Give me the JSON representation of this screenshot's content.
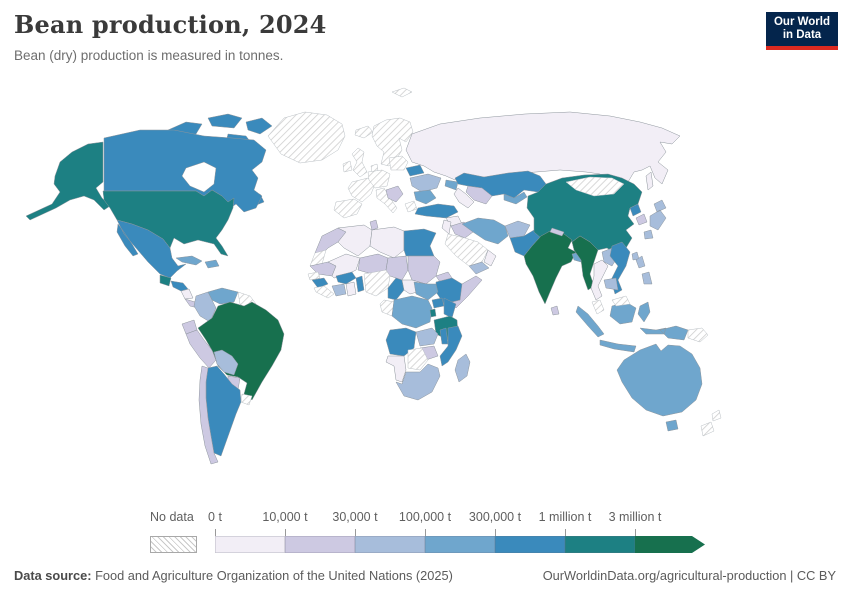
{
  "header": {
    "title": "Bean production, 2024",
    "subtitle": "Bean (dry) production is measured in tonnes.",
    "logo": {
      "line1": "Our World",
      "line2": "in Data",
      "bg": "#04254c",
      "accent": "#dc2a20"
    }
  },
  "legend": {
    "no_data_label": "No data",
    "tick_labels": [
      "0 t",
      "10,000 t",
      "30,000 t",
      "100,000 t",
      "300,000 t",
      "1 million t",
      "3 million t"
    ]
  },
  "footer": {
    "source_label": "Data source:",
    "source_text": " Food and Agriculture Organization of the United Nations (2025)",
    "right_text": "OurWorldinData.org/agricultural-production | CC BY"
  },
  "chart_data": {
    "type": "choropleth",
    "title": "Bean production, 2024",
    "unit": "tonnes",
    "projection": "world",
    "no_data": {
      "label": "No data",
      "pattern": "diagonal-hatch"
    },
    "bin_colors": [
      "#f2eef6",
      "#cdc9e2",
      "#a7bddb",
      "#6fa6cd",
      "#3a8abc",
      "#1d8083",
      "#17704e"
    ],
    "bins": [
      {
        "range": "0 t – 10,000 t",
        "color": "#f2eef6"
      },
      {
        "range": "10,000 t – 30,000 t",
        "color": "#cdc9e2"
      },
      {
        "range": "30,000 t – 100,000 t",
        "color": "#a7bddb"
      },
      {
        "range": "100,000 t – 300,000 t",
        "color": "#6fa6cd"
      },
      {
        "range": "300,000 t – 1 million t",
        "color": "#3a8abc"
      },
      {
        "range": "1 million t – 3 million t",
        "color": "#1d8083"
      },
      {
        "range": "> 3 million t",
        "color": "#17704e"
      }
    ],
    "country_bins": {
      "greenland": 0,
      "canada": 5,
      "united-states": 6,
      "guatemala": 6,
      "honduras": 5,
      "nicaragua": 1,
      "costa-rica-panama": 2,
      "mexico": 5,
      "cuba": 4,
      "hispaniola": 4,
      "venezuela": 4,
      "colombia": 3,
      "guyanas": 0,
      "ecuador": 2,
      "peru": 2,
      "brazil": 7,
      "bolivia": 3,
      "paraguay": 2,
      "uruguay": 0,
      "argentina": 5,
      "chile": 2,
      "iceland": 0,
      "united-kingdom": 0,
      "ireland": 0,
      "scandinavia": 0,
      "denmark": 0,
      "svalbard": 0,
      "france": 0,
      "iberia": 0,
      "central-europe": 0,
      "italy": 0,
      "poland-baltics": 0,
      "balkans": 2,
      "greece": 0,
      "belarus": 5,
      "ukraine": 3,
      "romania-bulgaria": 4,
      "russia": 1,
      "caucasus": 4,
      "kazakhstan": 5,
      "uzbekistan": 2,
      "turkmenistan": 1,
      "kyrgyzstan-tajikistan": 4,
      "turkey": 5,
      "syria": 1,
      "iraq": 2,
      "jordan-israel": 1,
      "saudi-arabia": 0,
      "yemen": 3,
      "oman": 1,
      "iran": 4,
      "afghanistan": 3,
      "pakistan": 5,
      "india": 7,
      "nepal": 2,
      "bangladesh": 4,
      "sri-lanka": 2,
      "china": 6,
      "mongolia": 0,
      "north-korea": 5,
      "south-korea": 2,
      "japan": 3,
      "taiwan": 3,
      "myanmar": 7,
      "thailand": 1,
      "laos": 3,
      "vietnam": 5,
      "cambodia": 3,
      "malaysia": 0,
      "indonesia": 4,
      "papua-new-guinea": 0,
      "philippines": 3,
      "australia": 4,
      "new-zealand": 0,
      "morocco": 2,
      "western-sahara": 0,
      "algeria": 1,
      "tunisia": 2,
      "libya": 1,
      "egypt": 5,
      "mauritania": 2,
      "mali": 1,
      "niger": 2,
      "chad": 2,
      "sudan": 2,
      "eritrea": 2,
      "ethiopia": 5,
      "somalia": 2,
      "senegal": 0,
      "guinea": 5,
      "sierra-leone-liberia": 0,
      "ivory-coast": 3,
      "ghana": 1,
      "burkina-faso": 5,
      "togo-benin": 5,
      "nigeria": 0,
      "cameroon": 5,
      "central-african-republic": 1,
      "south-sudan": 4,
      "uganda": 5,
      "kenya": 5,
      "gabon-congo": 0,
      "dr-congo": 4,
      "rwanda-burundi": 6,
      "tanzania": 6,
      "angola": 5,
      "zambia": 3,
      "malawi": 5,
      "mozambique": 5,
      "zimbabwe": 2,
      "botswana": 0,
      "namibia": 1,
      "south-africa": 3,
      "madagascar": 3
    }
  }
}
